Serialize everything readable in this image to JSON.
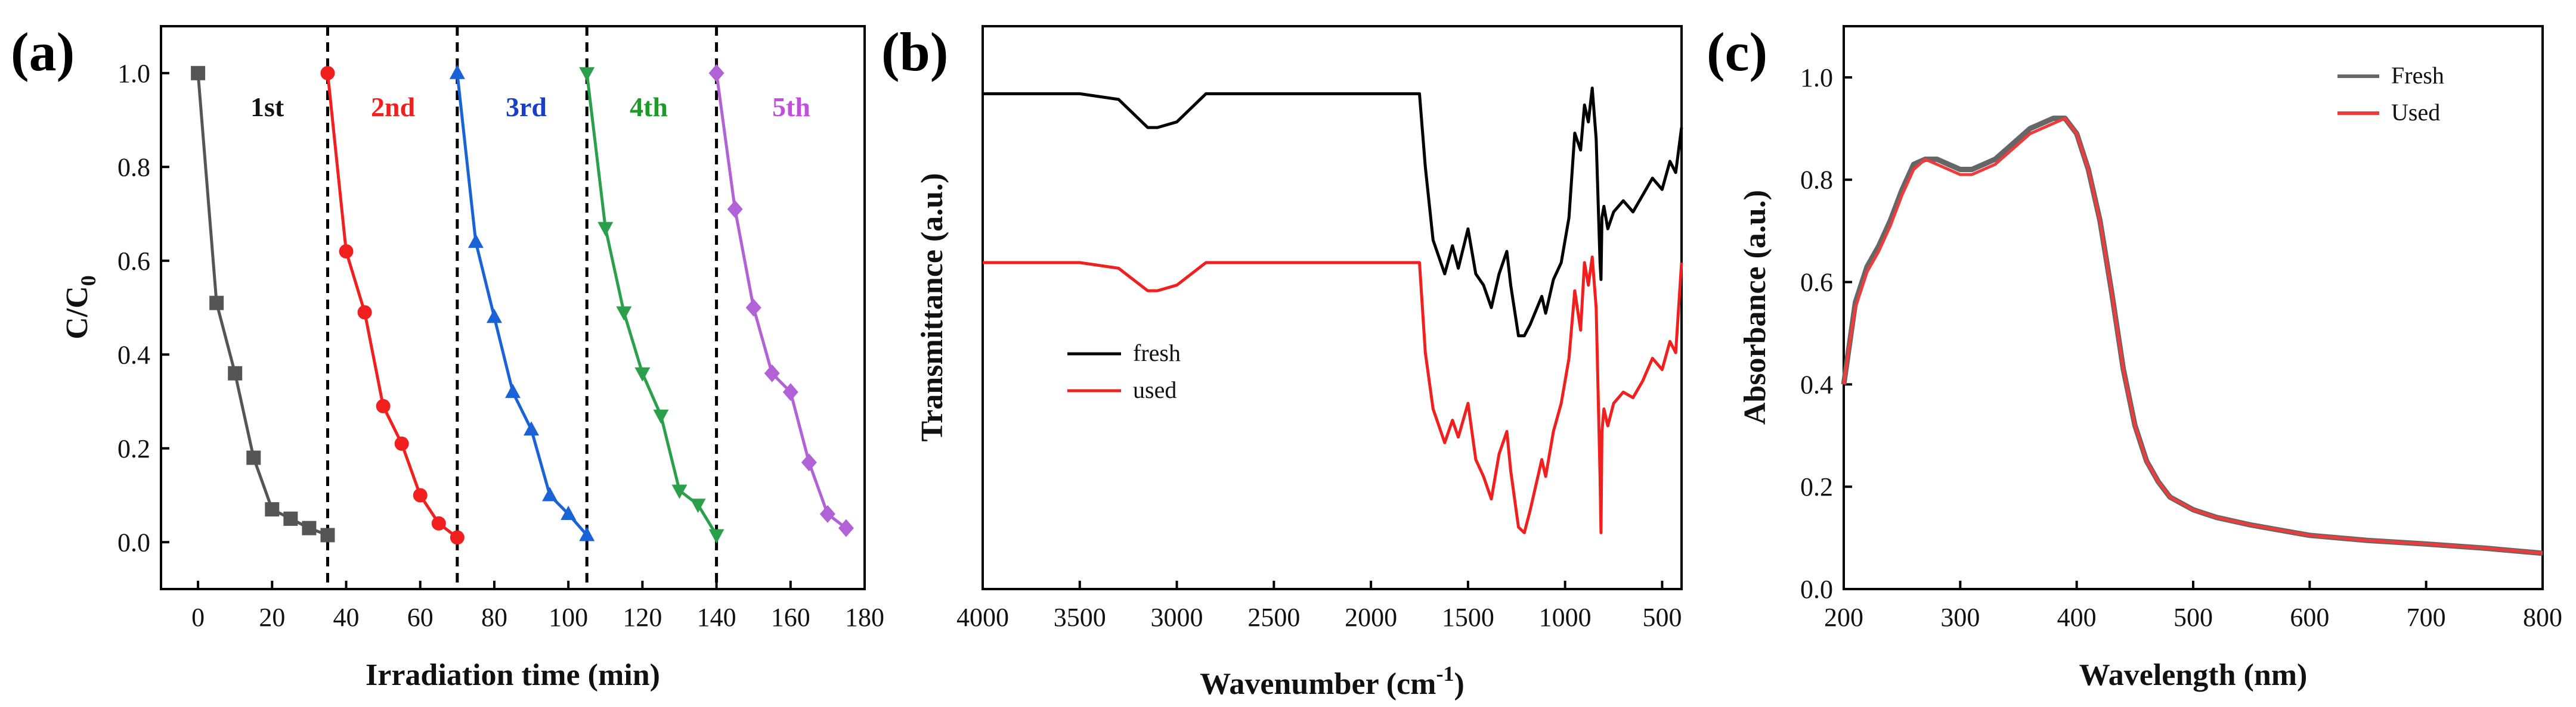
{
  "colors": {
    "cycle1": "#555555",
    "cycle2": "#f21f1f",
    "cycle3": "#1a63d6",
    "cycle4": "#2aa04a",
    "cycle5": "#b062d6",
    "black": "#000000",
    "red": "#f21f1f",
    "fresh_c": "#666666",
    "used_c": "#ef3b3b",
    "label1": "#111111",
    "label2": "#f21f1f",
    "label3": "#1a3fc7",
    "label4": "#1f9a2a",
    "label5": "#c24ee0"
  },
  "chart_data": [
    {
      "panel": "(a)",
      "type": "line",
      "xlabel": "Irradiation time (min)",
      "ylabel_main": "C/C",
      "ylabel_sub": "0",
      "xlim": [
        -10,
        180
      ],
      "ylim": [
        -0.1,
        1.1
      ],
      "xticks": [
        "0",
        "20",
        "40",
        "60",
        "80",
        "100",
        "120",
        "140",
        "160",
        "180"
      ],
      "yticks": [
        "0.0",
        "0.2",
        "0.4",
        "0.6",
        "0.8",
        "1.0"
      ],
      "dividers": [
        35,
        70,
        105,
        140
      ],
      "series": [
        {
          "name": "1st",
          "marker": "square",
          "x": [
            0,
            5,
            10,
            15,
            20,
            25,
            30,
            35
          ],
          "y": [
            1.0,
            0.51,
            0.36,
            0.18,
            0.07,
            0.05,
            0.03,
            0.015
          ]
        },
        {
          "name": "2nd",
          "marker": "circle",
          "x": [
            35,
            40,
            45,
            50,
            55,
            60,
            65,
            70
          ],
          "y": [
            1.0,
            0.62,
            0.49,
            0.29,
            0.21,
            0.1,
            0.04,
            0.01
          ]
        },
        {
          "name": "3rd",
          "marker": "triangle-up",
          "x": [
            70,
            75,
            80,
            85,
            90,
            95,
            100,
            105
          ],
          "y": [
            1.0,
            0.64,
            0.48,
            0.32,
            0.24,
            0.1,
            0.06,
            0.015
          ]
        },
        {
          "name": "4th",
          "marker": "triangle-down",
          "x": [
            105,
            110,
            115,
            120,
            125,
            130,
            135,
            140
          ],
          "y": [
            1.0,
            0.67,
            0.49,
            0.36,
            0.27,
            0.11,
            0.08,
            0.015
          ]
        },
        {
          "name": "5th",
          "marker": "diamond",
          "x": [
            140,
            145,
            150,
            155,
            160,
            165,
            170,
            175
          ],
          "y": [
            1.0,
            0.71,
            0.5,
            0.36,
            0.32,
            0.17,
            0.06,
            0.03
          ]
        }
      ]
    },
    {
      "panel": "(b)",
      "type": "line",
      "xlabel_main": "Wavenumber (cm",
      "xlabel_sup": "-1",
      "xlabel_tail": ")",
      "ylabel": "Transmittance (a.u.)",
      "xlim": [
        4000,
        400
      ],
      "xticks": [
        "4000",
        "3500",
        "3000",
        "2500",
        "2000",
        "1500",
        "1000",
        "500"
      ],
      "series": [
        {
          "name": "fresh",
          "x": [
            4000,
            3500,
            3300,
            3150,
            3100,
            3000,
            2850,
            2500,
            2000,
            1750,
            1720,
            1680,
            1620,
            1580,
            1550,
            1500,
            1460,
            1420,
            1380,
            1340,
            1300,
            1280,
            1240,
            1210,
            1180,
            1120,
            1100,
            1060,
            1020,
            980,
            950,
            920,
            900,
            880,
            860,
            840,
            820,
            815,
            810,
            800,
            780,
            750,
            700,
            650,
            600,
            550,
            500,
            460,
            430,
            400
          ],
          "y": [
            0.88,
            0.88,
            0.87,
            0.82,
            0.82,
            0.83,
            0.88,
            0.88,
            0.88,
            0.88,
            0.75,
            0.62,
            0.56,
            0.61,
            0.57,
            0.64,
            0.56,
            0.54,
            0.5,
            0.56,
            0.6,
            0.54,
            0.45,
            0.45,
            0.47,
            0.52,
            0.49,
            0.55,
            0.58,
            0.66,
            0.81,
            0.78,
            0.86,
            0.83,
            0.89,
            0.8,
            0.58,
            0.55,
            0.66,
            0.68,
            0.64,
            0.67,
            0.69,
            0.67,
            0.7,
            0.73,
            0.71,
            0.76,
            0.74,
            0.82
          ]
        },
        {
          "name": "used",
          "x": [
            4000,
            3500,
            3300,
            3150,
            3100,
            3000,
            2850,
            2500,
            2000,
            1750,
            1720,
            1680,
            1620,
            1580,
            1550,
            1500,
            1460,
            1420,
            1380,
            1340,
            1300,
            1280,
            1240,
            1210,
            1180,
            1120,
            1100,
            1060,
            1020,
            980,
            950,
            920,
            900,
            880,
            860,
            840,
            820,
            815,
            810,
            800,
            780,
            750,
            700,
            650,
            600,
            550,
            500,
            460,
            430,
            400
          ],
          "y": [
            0.58,
            0.58,
            0.57,
            0.53,
            0.53,
            0.54,
            0.58,
            0.58,
            0.58,
            0.58,
            0.42,
            0.32,
            0.26,
            0.3,
            0.27,
            0.33,
            0.23,
            0.2,
            0.16,
            0.24,
            0.28,
            0.21,
            0.11,
            0.1,
            0.14,
            0.23,
            0.2,
            0.28,
            0.33,
            0.41,
            0.53,
            0.46,
            0.58,
            0.54,
            0.59,
            0.5,
            0.2,
            0.1,
            0.28,
            0.32,
            0.29,
            0.33,
            0.35,
            0.34,
            0.37,
            0.41,
            0.39,
            0.44,
            0.42,
            0.58
          ]
        }
      ],
      "legend_position": "lower-left"
    },
    {
      "panel": "(c)",
      "type": "line",
      "xlabel": "Wavelength (nm)",
      "ylabel": "Absorbance (a.u.)",
      "xlim": [
        200,
        800
      ],
      "ylim": [
        0.0,
        1.1
      ],
      "xticks": [
        "200",
        "300",
        "400",
        "500",
        "600",
        "700",
        "800"
      ],
      "yticks": [
        "0.0",
        "0.2",
        "0.4",
        "0.6",
        "0.8",
        "1.0"
      ],
      "series": [
        {
          "name": "Fresh",
          "x": [
            200,
            205,
            210,
            220,
            230,
            240,
            250,
            260,
            270,
            280,
            290,
            300,
            310,
            320,
            330,
            340,
            350,
            360,
            370,
            380,
            390,
            400,
            410,
            420,
            430,
            440,
            450,
            460,
            470,
            480,
            500,
            520,
            550,
            600,
            650,
            700,
            750,
            800
          ],
          "y": [
            0.4,
            0.48,
            0.56,
            0.63,
            0.67,
            0.72,
            0.78,
            0.83,
            0.84,
            0.84,
            0.83,
            0.82,
            0.82,
            0.83,
            0.84,
            0.86,
            0.88,
            0.9,
            0.91,
            0.92,
            0.92,
            0.89,
            0.82,
            0.72,
            0.58,
            0.43,
            0.32,
            0.25,
            0.21,
            0.18,
            0.155,
            0.14,
            0.125,
            0.105,
            0.095,
            0.088,
            0.08,
            0.07
          ]
        },
        {
          "name": "Used",
          "x": [
            200,
            205,
            210,
            220,
            230,
            240,
            250,
            260,
            270,
            280,
            290,
            300,
            310,
            320,
            330,
            340,
            350,
            360,
            370,
            380,
            390,
            400,
            410,
            420,
            430,
            440,
            450,
            460,
            470,
            480,
            500,
            520,
            550,
            600,
            650,
            700,
            750,
            800
          ],
          "y": [
            0.4,
            0.48,
            0.55,
            0.62,
            0.66,
            0.71,
            0.77,
            0.82,
            0.84,
            0.83,
            0.82,
            0.81,
            0.81,
            0.82,
            0.83,
            0.85,
            0.87,
            0.89,
            0.9,
            0.91,
            0.92,
            0.89,
            0.82,
            0.72,
            0.58,
            0.43,
            0.32,
            0.25,
            0.21,
            0.18,
            0.155,
            0.14,
            0.125,
            0.105,
            0.095,
            0.088,
            0.08,
            0.07
          ]
        }
      ],
      "legend_position": "top-right"
    }
  ]
}
